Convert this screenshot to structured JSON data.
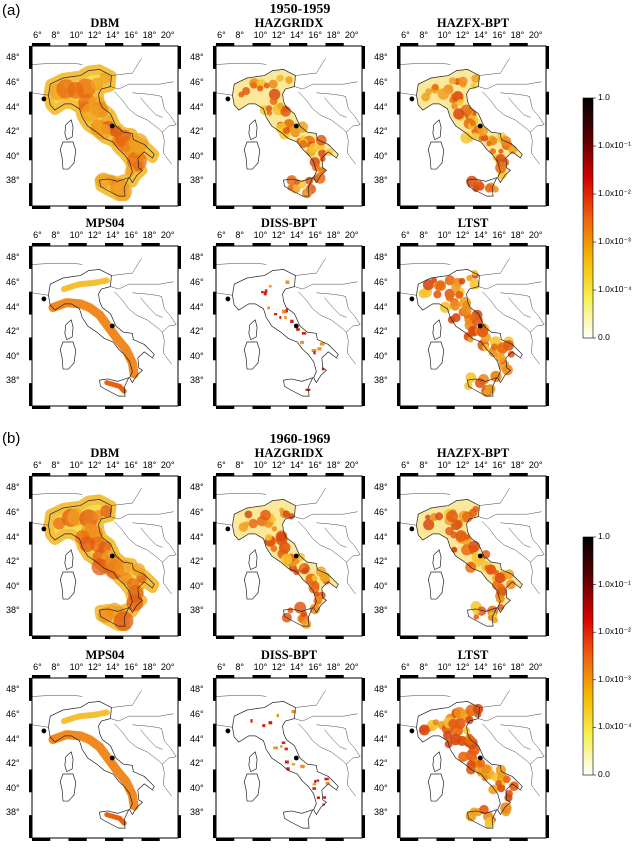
{
  "figure": {
    "panels": [
      {
        "label": "(a)",
        "period": "1950-1959"
      },
      {
        "label": "(b)",
        "period": "1960-1969"
      }
    ],
    "models": [
      "DBM",
      "HAZGRIDX",
      "HAZFX-BPT",
      "MPS04",
      "DISS-BPT",
      "LTST"
    ]
  },
  "chart_data": {
    "type": "heatmap",
    "description_fields": [
      "model",
      "period"
    ],
    "x_ticks": [
      "6°",
      "8°",
      "10°",
      "12°",
      "14°",
      "16°",
      "18°",
      "20°"
    ],
    "y_ticks": [
      "48°",
      "46°",
      "44°",
      "42°",
      "40°",
      "38°"
    ],
    "x_range": [
      5,
      21
    ],
    "y_range": [
      36,
      49
    ],
    "colorbar": {
      "ticks": [
        "1.0",
        "1.0x10⁻¹",
        "1.0x10⁻²",
        "1.0x10⁻³",
        "1.0x10⁻⁴",
        "0.0"
      ],
      "colors": [
        "#000000",
        "#5a0000",
        "#d40000",
        "#f06010",
        "#f5b800",
        "#f7f050",
        "#ffffff"
      ]
    },
    "grid": false,
    "legend": "right"
  }
}
